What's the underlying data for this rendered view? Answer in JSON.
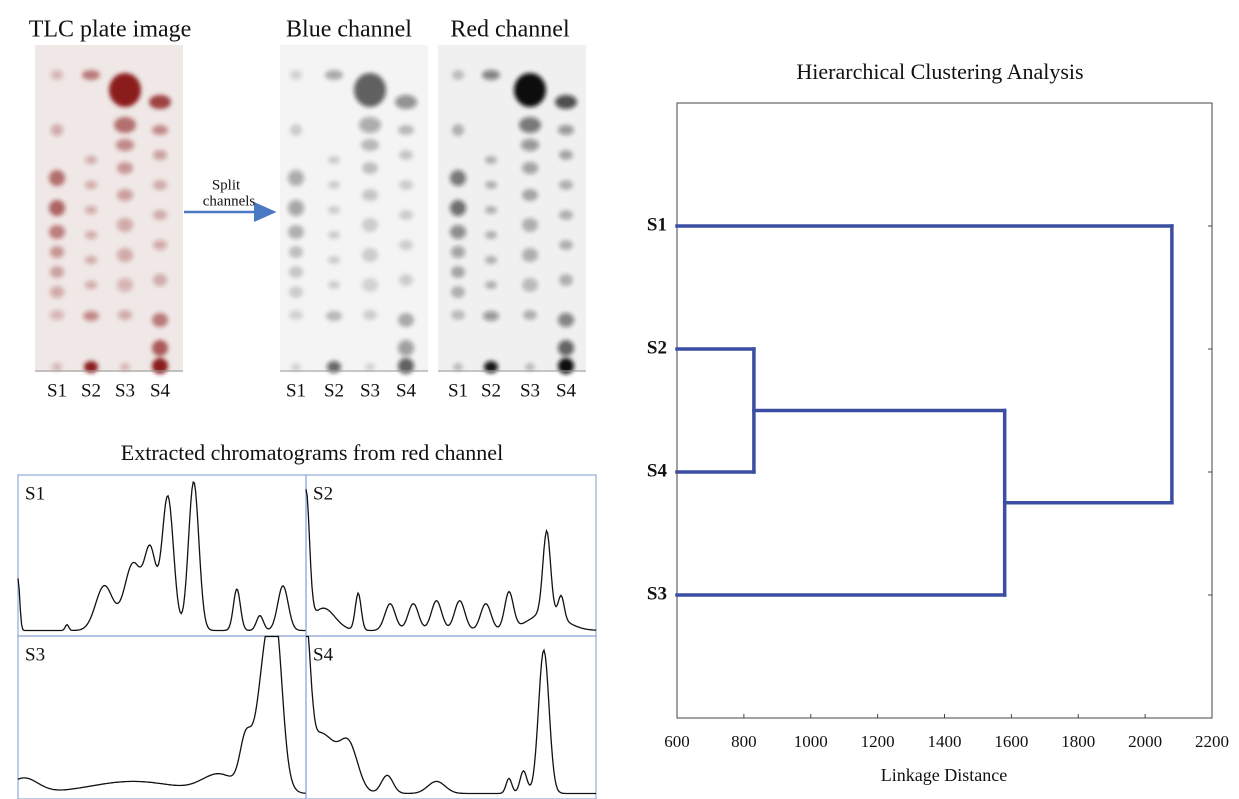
{
  "plates": [
    {
      "title": "TLC plate image",
      "lanes": [
        "S1",
        "S2",
        "S3",
        "S4"
      ]
    },
    {
      "title": "Blue channel",
      "lanes": [
        "S1",
        "S2",
        "S3",
        "S4"
      ]
    },
    {
      "title": "Red channel",
      "lanes": [
        "S1",
        "S2",
        "S3",
        "S4"
      ]
    }
  ],
  "split_label": [
    "Split",
    "channels"
  ],
  "chromatograms": {
    "title": "Extracted chromatograms from red channel",
    "labels": [
      "S1",
      "S2",
      "S3",
      "S4"
    ]
  },
  "chart_data": {
    "type": "dendrogram",
    "title": "Hierarchical Clustering Analysis",
    "xlabel": "Linkage Distance",
    "xlim": [
      600,
      2200
    ],
    "xticks": [
      600,
      800,
      1000,
      1200,
      1400,
      1600,
      1800,
      2000,
      2200
    ],
    "color": "#3b4ea3",
    "tree": {
      "distance": 2080,
      "children": [
        {
          "leaf": "S1"
        },
        {
          "distance": 1580,
          "children": [
            {
              "distance": 830,
              "children": [
                {
                  "leaf": "S2"
                },
                {
                  "leaf": "S4"
                }
              ]
            },
            {
              "leaf": "S3"
            }
          ]
        }
      ]
    }
  }
}
